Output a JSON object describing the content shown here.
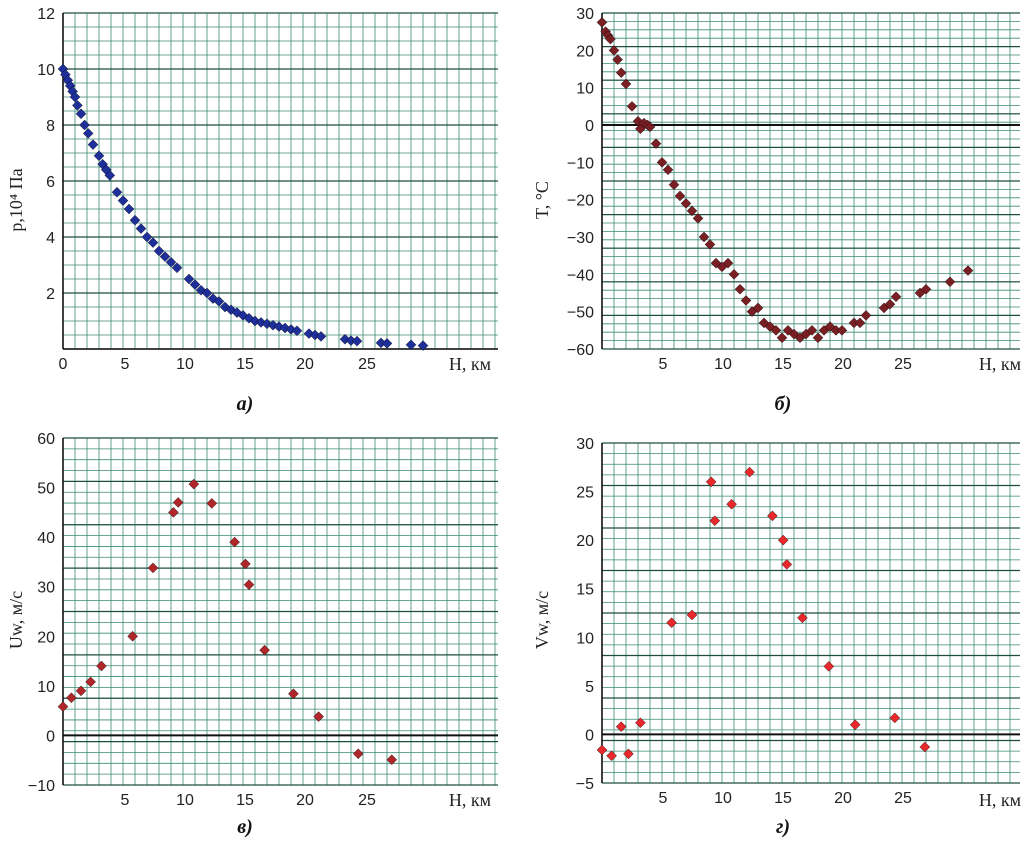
{
  "chart_data": [
    {
      "type": "scatter",
      "panel_label": "а)",
      "ylabel": "p,10⁴ Па",
      "xlabel": "H, км",
      "xlim": [
        0,
        36
      ],
      "ylim": [
        0,
        12
      ],
      "xticks": [
        "0",
        "5",
        "10",
        "15",
        "20",
        "25"
      ],
      "yticks": [
        "2",
        "4",
        "6",
        "8",
        "10",
        "12"
      ],
      "marker_color": "#1f2f9a",
      "zero_line": false,
      "series": [
        {
          "x": [
            0.0,
            0.2,
            0.4,
            0.6,
            0.8,
            1.0,
            1.2,
            1.5,
            1.8,
            2.1,
            2.5,
            3.0,
            3.3,
            3.6,
            3.9,
            4.5,
            5.0,
            5.5,
            6.0,
            6.5,
            7.0,
            7.5,
            8.0,
            8.5,
            9.0,
            9.5,
            10.5,
            11.0,
            11.5,
            12.0,
            12.5,
            13.0,
            13.5,
            14.0,
            14.5,
            15.0,
            15.5,
            16.0,
            16.5,
            17.0,
            17.5,
            18.0,
            18.5,
            19.0,
            19.5,
            20.5,
            21.0,
            21.5,
            23.5,
            24.0,
            24.5,
            26.5,
            27.0,
            29.0,
            30.0
          ],
          "y": [
            10.0,
            9.8,
            9.6,
            9.4,
            9.2,
            9.0,
            8.7,
            8.4,
            8.0,
            7.7,
            7.3,
            6.9,
            6.6,
            6.4,
            6.2,
            5.6,
            5.3,
            5.0,
            4.6,
            4.3,
            4.0,
            3.8,
            3.5,
            3.3,
            3.1,
            2.9,
            2.5,
            2.3,
            2.1,
            2.0,
            1.8,
            1.7,
            1.5,
            1.4,
            1.3,
            1.2,
            1.1,
            1.0,
            0.95,
            0.9,
            0.85,
            0.8,
            0.75,
            0.7,
            0.65,
            0.55,
            0.5,
            0.45,
            0.35,
            0.3,
            0.28,
            0.22,
            0.2,
            0.15,
            0.12
          ]
        }
      ]
    },
    {
      "type": "scatter",
      "panel_label": "б)",
      "ylabel": "T, °C",
      "xlabel": "H, км",
      "xlim": [
        0,
        36
      ],
      "ylim": [
        -60,
        30
      ],
      "xticks": [
        "5",
        "10",
        "15",
        "20",
        "25"
      ],
      "yticks": [
        "−60",
        "−50",
        "−40",
        "−30",
        "−20",
        "−10",
        "0",
        "10",
        "20",
        "30"
      ],
      "marker_color": "#7a1f24",
      "zero_line": true,
      "series": [
        {
          "x": [
            0.0,
            0.3,
            0.5,
            0.7,
            1.0,
            1.3,
            1.6,
            2.0,
            2.5,
            3.0,
            3.2,
            3.5,
            3.8,
            4.0,
            4.5,
            5.0,
            5.5,
            6.0,
            6.5,
            7.0,
            7.5,
            8.0,
            8.5,
            9.0,
            9.5,
            10.0,
            10.5,
            11.0,
            11.5,
            12.0,
            12.5,
            13.0,
            13.5,
            14.0,
            14.5,
            15.0,
            15.5,
            16.0,
            16.5,
            17.0,
            17.5,
            18.0,
            18.5,
            19.0,
            19.5,
            20.0,
            21.0,
            21.5,
            22.0,
            23.5,
            24.0,
            24.5,
            26.5,
            27.0,
            29.0,
            30.5
          ],
          "y": [
            27.5,
            25.0,
            24.0,
            23.0,
            20.0,
            17.5,
            14.0,
            11.0,
            5.0,
            1.0,
            -1.0,
            0.5,
            0.0,
            -0.5,
            -5.0,
            -10.0,
            -12.0,
            -16.0,
            -19.0,
            -21.0,
            -23.0,
            -25.0,
            -30.0,
            -32.0,
            -37.0,
            -38.0,
            -37.0,
            -40.0,
            -44.0,
            -47.0,
            -50.0,
            -49.0,
            -53.0,
            -54.0,
            -55.0,
            -57.0,
            -55.0,
            -56.0,
            -57.0,
            -56.0,
            -55.0,
            -57.0,
            -55.0,
            -54.0,
            -55.0,
            -55.0,
            -53.0,
            -53.0,
            -51.0,
            -49.0,
            -48.0,
            -46.0,
            -45.0,
            -44.0,
            -42.0,
            -39.0
          ]
        }
      ]
    },
    {
      "type": "scatter",
      "panel_label": "в)",
      "ylabel": "Uw, м/с",
      "xlabel": "H, км",
      "xlim": [
        0,
        36
      ],
      "ylim": [
        -10,
        60
      ],
      "xticks": [
        "5",
        "10",
        "15",
        "20",
        "25"
      ],
      "yticks": [
        "−10",
        "0",
        "10",
        "20",
        "30",
        "40",
        "50",
        "60"
      ],
      "marker_color": "#b0262a",
      "zero_line": true,
      "series": [
        {
          "x": [
            0.0,
            0.7,
            1.5,
            2.3,
            3.2,
            5.8,
            7.5,
            9.2,
            9.6,
            10.9,
            12.4,
            14.3,
            15.2,
            15.5,
            16.8,
            19.2,
            21.3,
            24.6,
            27.4
          ],
          "y": [
            5.8,
            7.6,
            9.0,
            10.8,
            14.0,
            20.0,
            33.8,
            45.0,
            47.0,
            50.7,
            46.8,
            39.0,
            34.6,
            30.4,
            17.2,
            8.4,
            3.8,
            -3.7,
            -4.9
          ]
        }
      ]
    },
    {
      "type": "scatter",
      "panel_label": "г)",
      "ylabel": "Vw, м/с",
      "xlabel": "H, км",
      "xlim": [
        0,
        36
      ],
      "ylim": [
        -5,
        30
      ],
      "xticks": [
        "5",
        "10",
        "15",
        "20",
        "25"
      ],
      "yticks": [
        "−5",
        "0",
        "5",
        "10",
        "15",
        "20",
        "25",
        "30"
      ],
      "marker_color": "#e8282a",
      "zero_line": true,
      "series": [
        {
          "x": [
            0.0,
            0.8,
            1.6,
            2.2,
            3.2,
            5.8,
            7.5,
            9.1,
            9.4,
            10.8,
            12.3,
            14.2,
            15.1,
            15.4,
            16.7,
            18.9,
            21.1,
            24.4,
            26.9
          ],
          "y": [
            -1.6,
            -2.2,
            0.8,
            -2.0,
            1.2,
            11.5,
            12.3,
            26.0,
            22.0,
            23.7,
            27.0,
            22.5,
            20.0,
            17.5,
            12.0,
            7.0,
            1.0,
            1.7,
            -1.3
          ]
        }
      ]
    }
  ]
}
